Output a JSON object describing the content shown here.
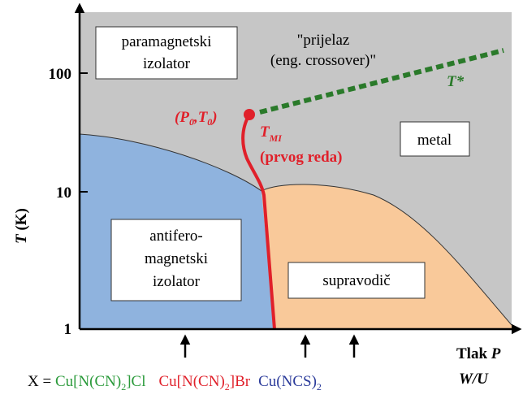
{
  "axes": {
    "y_label": [
      "T",
      "(K)"
    ],
    "y_ticks": [
      "100",
      "10",
      "1"
    ],
    "x_label": [
      "Tlak",
      "P"
    ],
    "x_sublabel": "W/U"
  },
  "regions": {
    "paramagnetic": [
      "paramagnetski",
      "izolator"
    ],
    "crossover": [
      "\"prijelaz",
      "(eng. crossover)\""
    ],
    "metal": "metal",
    "antiferro": [
      "antifero-",
      "magnetski",
      "izolator"
    ],
    "superconductor": "supravodič"
  },
  "annotations": {
    "critical_point": [
      "(P",
      "0",
      ",T",
      "0",
      ")"
    ],
    "t_mi": [
      "T",
      "MI"
    ],
    "first_order": "(prvog reda)",
    "t_star": "T*"
  },
  "compounds": {
    "prefix": "X = ",
    "cl": [
      "Cu[N(CN)",
      "2",
      "]Cl"
    ],
    "br": [
      "Cu[N(CN)",
      "2",
      "]Br"
    ],
    "ncs": [
      "Cu(NCS)",
      "2"
    ]
  }
}
